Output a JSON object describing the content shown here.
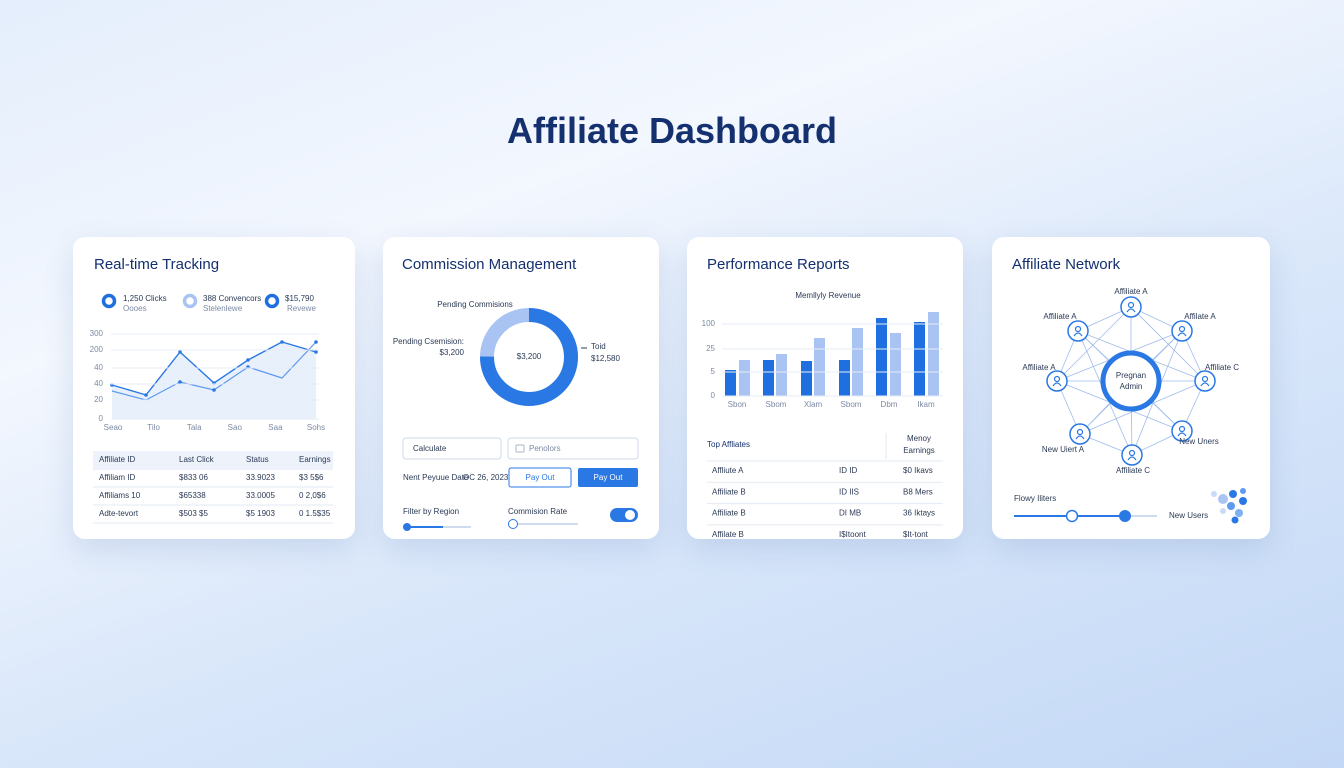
{
  "header": {
    "title": "Affiliate Dashboard"
  },
  "cards": [
    {
      "title": "Real-time Tracking",
      "stats": [
        {
          "value": "1,250 Clicks",
          "label": "Oooes"
        },
        {
          "value": "388 Convencors",
          "label": "Stelenlewe"
        },
        {
          "value": "$15,790",
          "label": "Revewe"
        }
      ],
      "chart": {
        "y_labels": [
          "300",
          "200",
          "40",
          "40",
          "20",
          "0"
        ],
        "x_labels": [
          "Seao",
          "Tilo",
          "Tala",
          "Sao",
          "Saa",
          "Sohs"
        ]
      },
      "table": {
        "header": [
          "Affiliate ID",
          "Last Click",
          "Status",
          "Earnings"
        ],
        "rows": [
          [
            "Affiliam ID",
            "$833 06",
            "33.9023",
            "$3 5$6"
          ],
          [
            "Affiliams 10",
            "$65338",
            "33.0005",
            "0 2,0$6"
          ],
          [
            "Adte-tevort",
            "$503 $5",
            "$5 1903",
            "0 1.5$35"
          ]
        ]
      }
    },
    {
      "title": "Commission Management",
      "donut_title": "Pending Commisions",
      "left_label": "Pending Csemision:",
      "left_value": "$3,200",
      "center_value": "$3,200",
      "right_label": "Toid",
      "right_value": "$12,580",
      "input_calculate": "Calculate",
      "input_placeholder": "Penolors",
      "date_label": "Nent Peyuue Date",
      "date_value": "OC 26, 2023",
      "button_outline": "Pay Out",
      "button_filled": "Pay Out",
      "filter_label": "Filter by Region",
      "rate_label": "Commision Rate"
    },
    {
      "title": "Performance Reports",
      "chart": {
        "title": "Memllyly Revenue",
        "y_labels": [
          "100",
          "25",
          "5",
          "0"
        ],
        "x_labels": [
          "Sbon",
          "Sbom",
          "Xlam",
          "Sbom",
          "Dbm",
          "Ikam"
        ]
      },
      "table": {
        "title": "Top Affliates",
        "header": [
          "Menoy",
          "Earnings"
        ],
        "rows": [
          [
            "Affliute A",
            "ID ID",
            "$0 Ikavs"
          ],
          [
            "Affiliate B",
            "ID IIS",
            "B8 Mers"
          ],
          [
            "Affiliate B",
            "DI MB",
            "36 Iktays"
          ],
          [
            "Affilate B",
            "I$Itoont",
            "$It-tont"
          ]
        ]
      }
    },
    {
      "title": "Affiliate Network",
      "center_node": [
        "Pregnan",
        "Admin"
      ],
      "nodes": [
        "Affiliate A",
        "Affiliate A",
        "Affilate A",
        "Affiliate A",
        "Affiliate C",
        "New Uiert A",
        "New Uners",
        "Affiliate C"
      ],
      "filter_label": "Flowy Iliters",
      "users_label": "New Users"
    }
  ]
}
